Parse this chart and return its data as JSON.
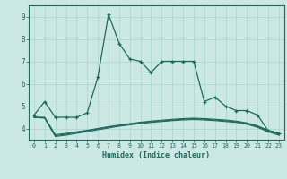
{
  "xlabel": "Humidex (Indice chaleur)",
  "bg_color": "#cce8e4",
  "line_color": "#1a6b5e",
  "grid_color": "#aad4ce",
  "xlim": [
    -0.5,
    23.5
  ],
  "ylim": [
    3.5,
    9.5
  ],
  "x_ticks": [
    0,
    1,
    2,
    3,
    4,
    5,
    6,
    7,
    8,
    9,
    10,
    11,
    12,
    13,
    14,
    15,
    16,
    17,
    18,
    19,
    20,
    21,
    22,
    23
  ],
  "y_ticks": [
    4,
    5,
    6,
    7,
    8,
    9
  ],
  "line1": {
    "x": [
      0,
      1,
      2,
      3,
      4,
      5,
      6,
      7,
      8,
      9,
      10,
      11,
      12,
      13,
      14,
      15,
      16,
      17,
      18,
      19,
      20,
      21,
      22,
      23
    ],
    "y": [
      4.6,
      5.2,
      4.5,
      4.5,
      4.5,
      4.7,
      6.3,
      9.1,
      7.8,
      7.1,
      7.0,
      6.5,
      7.0,
      7.0,
      7.0,
      7.0,
      5.2,
      5.4,
      5.0,
      4.8,
      4.8,
      4.6,
      3.9,
      3.8
    ]
  },
  "line2": {
    "x": [
      0,
      1,
      2,
      3,
      4,
      5,
      6,
      7,
      8,
      9,
      10,
      11,
      12,
      13,
      14,
      15,
      16,
      17,
      18,
      19,
      20,
      21,
      22,
      23
    ],
    "y": [
      4.5,
      4.5,
      3.72,
      3.78,
      3.85,
      3.92,
      4.0,
      4.08,
      4.15,
      4.22,
      4.28,
      4.33,
      4.37,
      4.41,
      4.44,
      4.46,
      4.44,
      4.41,
      4.38,
      4.33,
      4.25,
      4.12,
      3.92,
      3.78
    ]
  },
  "line3": {
    "x": [
      0,
      1,
      2,
      3,
      4,
      5,
      6,
      7,
      8,
      9,
      10,
      11,
      12,
      13,
      14,
      15,
      16,
      17,
      18,
      19,
      20,
      21,
      22,
      23
    ],
    "y": [
      4.5,
      4.48,
      3.68,
      3.74,
      3.82,
      3.9,
      3.98,
      4.06,
      4.13,
      4.19,
      4.25,
      4.3,
      4.34,
      4.38,
      4.41,
      4.43,
      4.41,
      4.38,
      4.34,
      4.3,
      4.22,
      4.08,
      3.88,
      3.74
    ]
  },
  "line4": {
    "x": [
      0,
      1,
      2,
      3,
      4,
      5,
      6,
      7,
      8,
      9,
      10,
      11,
      12,
      13,
      14,
      15,
      16,
      17,
      18,
      19,
      20,
      21,
      22,
      23
    ],
    "y": [
      4.5,
      4.46,
      3.64,
      3.7,
      3.78,
      3.86,
      3.94,
      4.02,
      4.1,
      4.16,
      4.22,
      4.27,
      4.31,
      4.35,
      4.38,
      4.4,
      4.38,
      4.35,
      4.31,
      4.27,
      4.19,
      4.05,
      3.85,
      3.7
    ]
  }
}
